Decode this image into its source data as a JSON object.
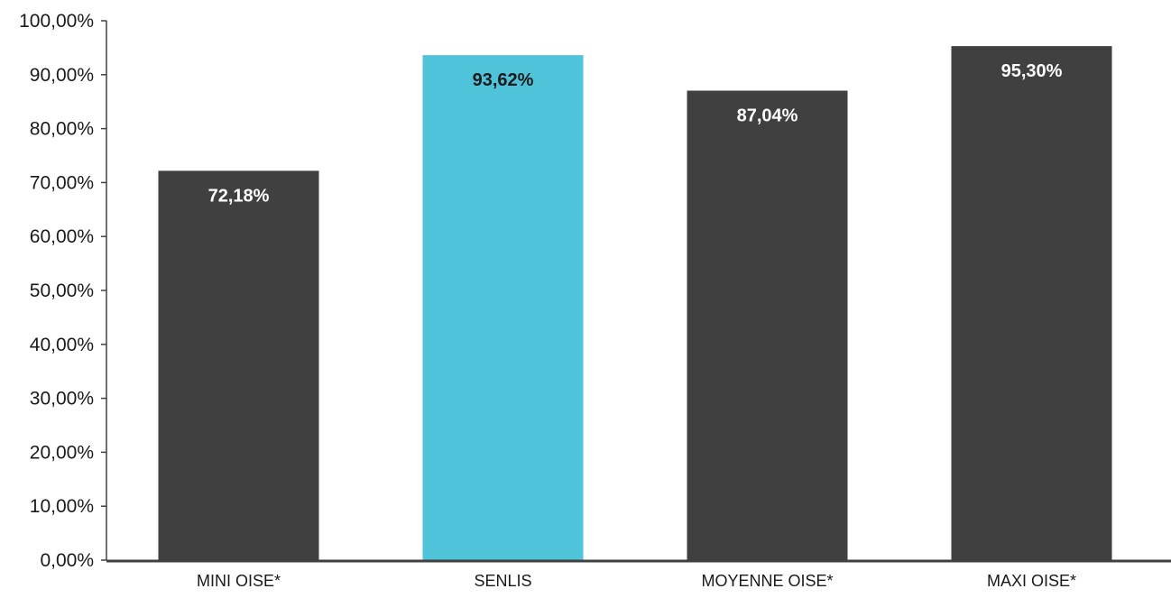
{
  "chart_data": {
    "type": "bar",
    "categories": [
      "MINI OISE*",
      "SENLIS",
      "MOYENNE OISE*",
      "MAXI OISE*"
    ],
    "values": [
      72.18,
      93.62,
      87.04,
      95.3
    ],
    "data_labels": [
      "72,18%",
      "93,62%",
      "87,04%",
      "95,30%"
    ],
    "bar_colors": [
      "#404040",
      "#4FC3DA",
      "#404040",
      "#404040"
    ],
    "label_colors": [
      "#ffffff",
      "#1a1a1a",
      "#ffffff",
      "#ffffff"
    ],
    "ylim": [
      0,
      100
    ],
    "yticks": [
      0,
      10,
      20,
      30,
      40,
      50,
      60,
      70,
      80,
      90,
      100
    ],
    "ytick_labels": [
      "0,00%",
      "10,00%",
      "20,00%",
      "30,00%",
      "40,00%",
      "50,00%",
      "60,00%",
      "70,00%",
      "80,00%",
      "90,00%",
      "100,00%"
    ],
    "title": "",
    "xlabel": "",
    "ylabel": "",
    "grid": false,
    "legend": "none",
    "axis_color": "#404040",
    "tick_label_color": "#1a1a1a"
  }
}
